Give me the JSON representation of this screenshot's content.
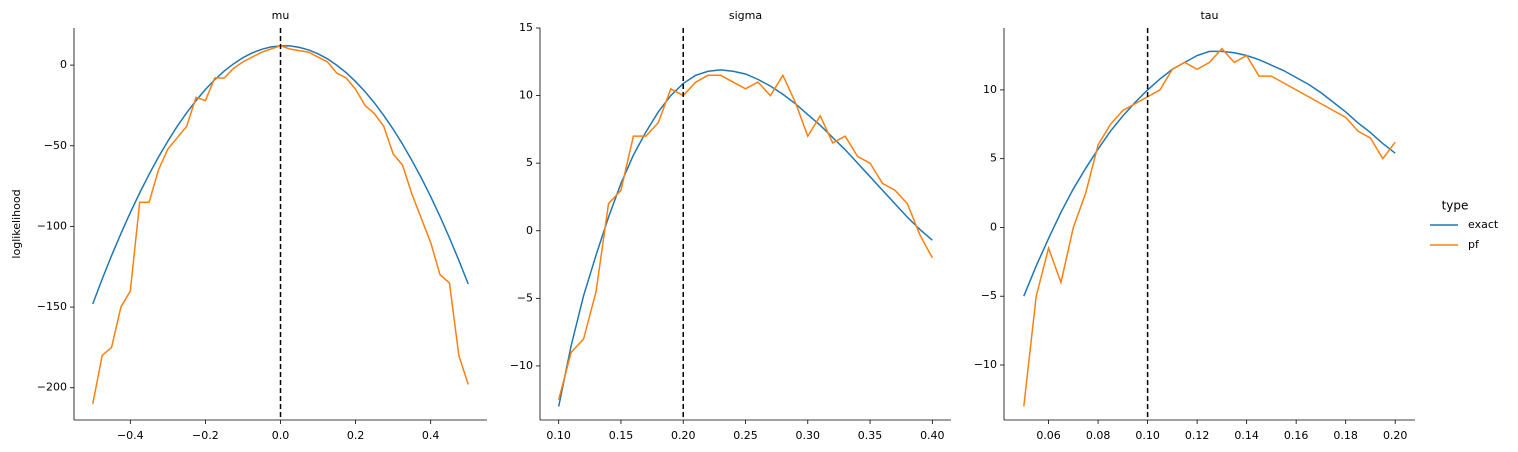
{
  "legend_title": "type",
  "chart_data": [
    {
      "type": "line",
      "title": "mu",
      "ylabel": "loglikelihood",
      "x": [
        -0.5,
        -0.475,
        -0.45,
        -0.425,
        -0.4,
        -0.375,
        -0.35,
        -0.325,
        -0.3,
        -0.275,
        -0.25,
        -0.225,
        -0.2,
        -0.175,
        -0.15,
        -0.125,
        -0.1,
        -0.075,
        -0.05,
        -0.025,
        0,
        0.025,
        0.05,
        0.075,
        0.1,
        0.125,
        0.15,
        0.175,
        0.2,
        0.225,
        0.25,
        0.275,
        0.3,
        0.325,
        0.35,
        0.375,
        0.4,
        0.425,
        0.45,
        0.475,
        0.5
      ],
      "series": [
        {
          "name": "exact",
          "color": "#1f77b4",
          "values": [
            -148,
            -132.7,
            -118.1,
            -104.4,
            -91.4,
            -79.2,
            -67.7,
            -57,
            -47.1,
            -37.9,
            -29.6,
            -22,
            -15.1,
            -9,
            -3.7,
            0.8,
            4.6,
            7.6,
            9.8,
            11.3,
            11.9,
            11.9,
            11,
            9.4,
            7,
            3.9,
            -0.1,
            -4.7,
            -10.2,
            -16.4,
            -23.4,
            -31.2,
            -39.7,
            -49,
            -59.1,
            -69.9,
            -81.5,
            -93.9,
            -107.1,
            -121,
            -135.7
          ]
        },
        {
          "name": "pf",
          "color": "#ff7f0e",
          "values": [
            -210,
            -180,
            -175,
            -150,
            -140,
            -85,
            -85,
            -65,
            -52,
            -45,
            -38,
            -20,
            -22,
            -8,
            -8,
            -2,
            2,
            5,
            8,
            10,
            12,
            10,
            9,
            8,
            5,
            2,
            -5,
            -8,
            -15,
            -25,
            -30,
            -38,
            -55,
            -62,
            -80,
            -95,
            -110,
            -130,
            -135,
            -180,
            -198
          ]
        }
      ],
      "vline": 0,
      "xlim": [
        -0.55,
        0.55
      ],
      "ylim": [
        -220,
        23
      ],
      "xticks": [
        {
          "value": -0.4,
          "label": "−0.4"
        },
        {
          "value": -0.2,
          "label": "−0.2"
        },
        {
          "value": 0,
          "label": "0.0"
        },
        0.2,
        0.4
      ],
      "yticks": [
        {
          "value": -200,
          "label": "−200"
        },
        {
          "value": -150,
          "label": "−150"
        },
        {
          "value": -100,
          "label": "−100"
        },
        {
          "value": -50,
          "label": "−50"
        },
        0
      ]
    },
    {
      "type": "line",
      "title": "sigma",
      "x": [
        0.1,
        0.11,
        0.12,
        0.13,
        0.14,
        0.15,
        0.16,
        0.17,
        0.18,
        0.19,
        0.2,
        0.21,
        0.22,
        0.23,
        0.24,
        0.25,
        0.26,
        0.27,
        0.28,
        0.29,
        0.3,
        0.31,
        0.32,
        0.33,
        0.34,
        0.35,
        0.36,
        0.37,
        0.38,
        0.39,
        0.4
      ],
      "series": [
        {
          "name": "exact",
          "color": "#1f77b4",
          "values": [
            -13,
            -8.5,
            -4.8,
            -1.8,
            1,
            3.5,
            5.6,
            7.3,
            8.8,
            10,
            10.9,
            11.5,
            11.8,
            11.9,
            11.8,
            11.6,
            11.2,
            10.7,
            10.1,
            9.4,
            8.6,
            7.8,
            6.9,
            6,
            5,
            4,
            3,
            2,
            1,
            0.1,
            -0.7
          ]
        },
        {
          "name": "pf",
          "color": "#ff7f0e",
          "values": [
            -12.5,
            -9,
            -8,
            -4.5,
            2,
            3,
            7,
            7,
            8,
            10.5,
            10,
            11,
            11.5,
            11.5,
            11,
            10.5,
            11,
            10,
            11.5,
            9.5,
            7,
            8.5,
            6.5,
            7,
            5.5,
            5,
            3.5,
            3,
            2,
            -0.3,
            -2
          ]
        }
      ],
      "vline": 0.2,
      "xlim": [
        0.085,
        0.415
      ],
      "ylim": [
        -14,
        15
      ],
      "xticks": [
        {
          "value": 0.1,
          "label": "0.10"
        },
        0.15,
        {
          "value": 0.2,
          "label": "0.20"
        },
        0.25,
        {
          "value": 0.3,
          "label": "0.30"
        },
        0.35,
        {
          "value": 0.4,
          "label": "0.40"
        }
      ],
      "yticks": [
        {
          "value": -10,
          "label": "−10"
        },
        {
          "value": -5,
          "label": "−5"
        },
        0,
        5,
        10,
        15
      ]
    },
    {
      "type": "line",
      "title": "tau",
      "x": [
        0.05,
        0.055,
        0.06,
        0.065,
        0.07,
        0.075,
        0.08,
        0.085,
        0.09,
        0.095,
        0.1,
        0.105,
        0.11,
        0.115,
        0.12,
        0.125,
        0.13,
        0.135,
        0.14,
        0.145,
        0.15,
        0.155,
        0.16,
        0.165,
        0.17,
        0.175,
        0.18,
        0.185,
        0.19,
        0.195,
        0.2
      ],
      "series": [
        {
          "name": "exact",
          "color": "#1f77b4",
          "values": [
            -5,
            -2.8,
            -0.8,
            1.1,
            2.8,
            4.3,
            5.7,
            7,
            8.1,
            9.1,
            10,
            10.8,
            11.5,
            12,
            12.5,
            12.8,
            12.8,
            12.7,
            12.5,
            12.2,
            11.8,
            11.4,
            10.9,
            10.4,
            9.8,
            9.1,
            8.4,
            7.6,
            6.9,
            6.1,
            5.4
          ]
        },
        {
          "name": "pf",
          "color": "#ff7f0e",
          "values": [
            -13,
            -5,
            -1.5,
            -4,
            0,
            2.5,
            6,
            7.5,
            8.5,
            9,
            9.5,
            10,
            11.5,
            12,
            11.5,
            12,
            13,
            12,
            12.5,
            11,
            11,
            10.5,
            10,
            9.5,
            9,
            8.5,
            8,
            7,
            6.5,
            5,
            6.2
          ]
        }
      ],
      "vline": 0.1,
      "xlim": [
        0.042,
        0.208
      ],
      "ylim": [
        -14,
        14.5
      ],
      "xticks": [
        0.06,
        0.08,
        {
          "value": 0.1,
          "label": "0.10"
        },
        0.12,
        0.14,
        0.16,
        0.18,
        {
          "value": 0.2,
          "label": "0.20"
        }
      ],
      "yticks": [
        {
          "value": -10,
          "label": "−10"
        },
        {
          "value": -5,
          "label": "−5"
        },
        0,
        5,
        10
      ]
    }
  ]
}
